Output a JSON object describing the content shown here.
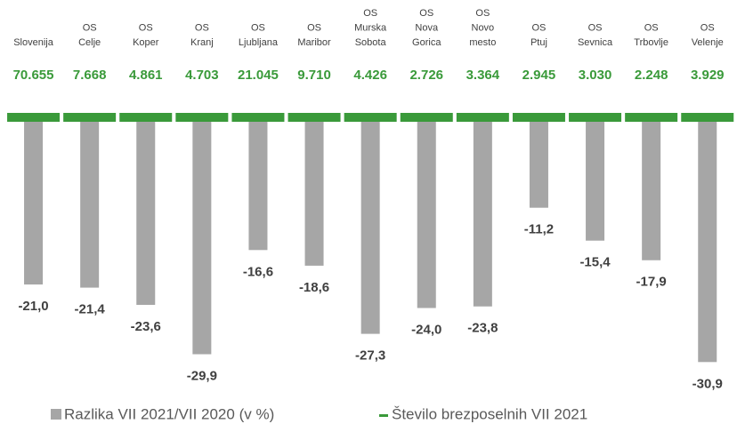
{
  "chart_data": {
    "type": "bar",
    "categories": [
      "Slovenija",
      "OS Celje",
      "OS Koper",
      "OS Kranj",
      "OS Ljubljana",
      "OS Maribor",
      "OS Murska Sobota",
      "OS Nova Gorica",
      "OS Novo mesto",
      "OS Ptuj",
      "OS Sevnica",
      "OS Trbovlje",
      "OS Velenje"
    ],
    "series": [
      {
        "name": "Razlika VII 2021/VII 2020 (v %)",
        "color": "#a6a6a6",
        "values": [
          -21.0,
          -21.4,
          -23.6,
          -29.9,
          -16.6,
          -18.6,
          -27.3,
          -24.0,
          -23.8,
          -11.2,
          -15.4,
          -17.9,
          -30.9
        ],
        "value_labels": [
          "-21,0",
          "-21,4",
          "-23,6",
          "-29,9",
          "-16,6",
          "-18,6",
          "-27,3",
          "-24,0",
          "-23,8",
          "-11,2",
          "-15,4",
          "-17,9",
          "-30,9"
        ]
      },
      {
        "name": "Število brezposelnih VII 2021",
        "color": "#3a9a3a",
        "values": [
          70655,
          7668,
          4861,
          4703,
          21045,
          9710,
          4426,
          2726,
          3364,
          2945,
          3030,
          2248,
          3929
        ],
        "value_labels": [
          "70.655",
          "7.668",
          "4.861",
          "4.703",
          "21.045",
          "9.710",
          "4.426",
          "2.726",
          "3.364",
          "2.945",
          "3.030",
          "2.248",
          "3.929"
        ]
      }
    ],
    "ylim": [
      -32,
      0
    ]
  }
}
